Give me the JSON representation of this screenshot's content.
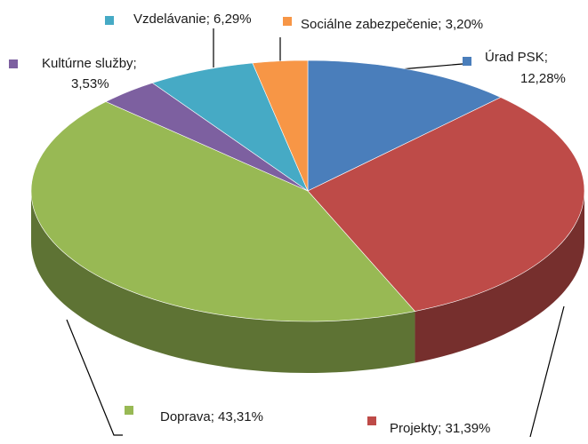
{
  "chart_data": {
    "type": "pie3d",
    "categories": [
      "Úrad PSK",
      "Projekty",
      "Doprava",
      "Kultúrne služby",
      "Vzdelávanie",
      "Sociálne zabezpečenie"
    ],
    "values": [
      12.28,
      31.39,
      43.31,
      3.53,
      6.29,
      3.2
    ],
    "value_labels": [
      [
        "Úrad PSK;",
        "12,28%"
      ],
      [
        "Projekty; 31,39%"
      ],
      [
        "Doprava; 43,31%"
      ],
      [
        "Kultúrne služby;",
        "3,53%"
      ],
      [
        "Vzdelávanie; 6,29%"
      ],
      [
        "Sociálne zabezpečenie; 3,20%"
      ]
    ],
    "colors": [
      "#4a7ebb",
      "#be4b48",
      "#98b954",
      "#7d60a0",
      "#46aac5",
      "#f79646"
    ]
  }
}
